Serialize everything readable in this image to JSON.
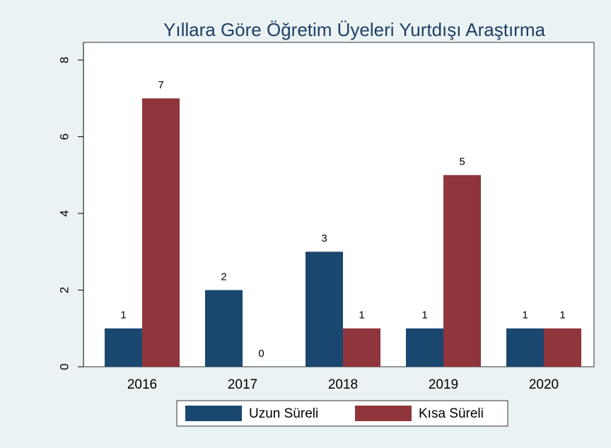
{
  "chart_data": {
    "type": "bar",
    "title": "Yıllara Göre Öğretim Üyeleri Yurtdışı Araştırma",
    "categories": [
      "2016",
      "2017",
      "2018",
      "2019",
      "2020"
    ],
    "series": [
      {
        "name": "Uzun Süreli",
        "color": "#1a476f",
        "values": [
          1,
          2,
          3,
          1,
          1
        ]
      },
      {
        "name": "Kısa Süreli",
        "color": "#90353b",
        "values": [
          7,
          0,
          1,
          5,
          1
        ]
      }
    ],
    "ylim": [
      0,
      8
    ],
    "yticks": [
      0,
      2,
      4,
      6,
      8
    ],
    "grid": false,
    "legend": "bottom"
  }
}
